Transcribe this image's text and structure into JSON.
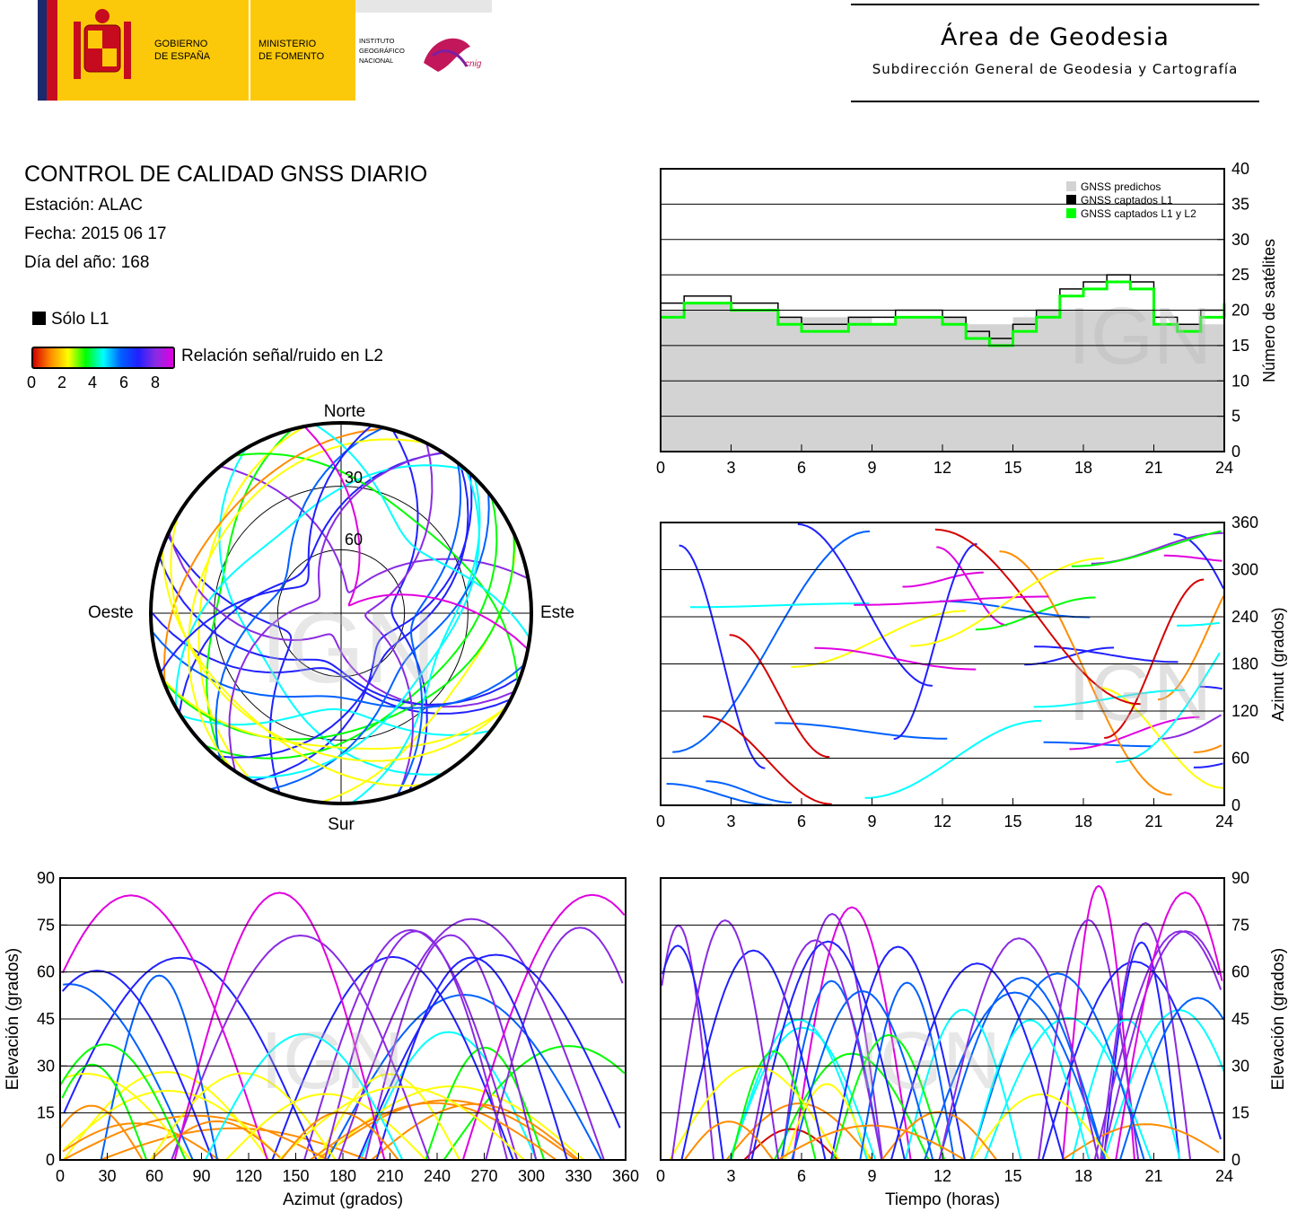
{
  "header": {
    "gov_text": [
      "GOBIERNO",
      "DE ESPAÑA"
    ],
    "ministry_text": [
      "MINISTERIO",
      "DE FOMENTO"
    ],
    "ign_text": [
      "INSTITUTO",
      "GEOGRÁFICO",
      "NACIONAL"
    ],
    "cnig_text": "cnig",
    "area_title": "Área de Geodesia",
    "area_subtitle": "Subdirección General de Geodesia y Cartografía"
  },
  "info": {
    "title": "CONTROL DE CALIDAD GNSS DIARIO",
    "station": "Estación: ALAC",
    "date": "Fecha: 2015 06 17",
    "doy": "Día del año: 168"
  },
  "legend": {
    "l1_only": "Sólo L1",
    "snr_label": "Relación señal/ruido en L2",
    "snr_ticks": [
      "0",
      "2",
      "4",
      "6",
      "8"
    ]
  },
  "watermark": "IGN",
  "colors": {
    "predicted": "#d3d3d3",
    "captured_l1": "#000000",
    "captured_l1_l2": "#00ff00",
    "snr_scale": [
      "#d40000",
      "#ff8c00",
      "#ffff00",
      "#00ff00",
      "#00ffff",
      "#0060ff",
      "#2020ff",
      "#8a2be2",
      "#e000e0"
    ]
  },
  "chart_data": [
    {
      "id": "satellite_count",
      "type": "area",
      "ylabel": "Número de satélites",
      "xlim": [
        0,
        24
      ],
      "ylim": [
        0,
        40
      ],
      "x_ticks": [
        "0",
        "3",
        "6",
        "9",
        "12",
        "15",
        "18",
        "21",
        "24"
      ],
      "y_ticks": [
        "0",
        "5",
        "10",
        "15",
        "20",
        "25",
        "30",
        "35",
        "40"
      ],
      "legend_position": "top-right",
      "grid": true,
      "series": [
        {
          "name": "GNSS predichos",
          "x": [
            0,
            1,
            2,
            3,
            4,
            5,
            6,
            7,
            8,
            9,
            10,
            11,
            12,
            13,
            14,
            15,
            16,
            17,
            18,
            19,
            20,
            21,
            22,
            23,
            24
          ],
          "values": [
            20,
            21,
            21,
            20,
            20,
            19,
            19,
            19,
            19,
            18,
            19,
            19,
            19,
            18,
            18,
            19,
            20,
            20,
            20,
            20,
            20,
            18,
            18,
            18,
            20
          ]
        },
        {
          "name": "GNSS captados L1",
          "x": [
            0,
            1,
            2,
            3,
            4,
            5,
            6,
            7,
            8,
            9,
            10,
            11,
            12,
            13,
            14,
            15,
            16,
            17,
            18,
            19,
            20,
            21,
            22,
            23,
            24
          ],
          "values": [
            21,
            22,
            22,
            21,
            21,
            19,
            18,
            18,
            19,
            19,
            20,
            20,
            19,
            17,
            16,
            18,
            20,
            23,
            24,
            25,
            24,
            19,
            18,
            20,
            22
          ]
        },
        {
          "name": "GNSS captados L1 y L2",
          "x": [
            0,
            1,
            2,
            3,
            4,
            5,
            6,
            7,
            8,
            9,
            10,
            11,
            12,
            13,
            14,
            15,
            16,
            17,
            18,
            19,
            20,
            21,
            22,
            23,
            24
          ],
          "values": [
            19,
            21,
            21,
            20,
            20,
            18,
            17,
            17,
            18,
            18,
            19,
            19,
            18,
            16,
            15,
            17,
            19,
            22,
            23,
            24,
            23,
            18,
            17,
            19,
            21
          ]
        }
      ]
    },
    {
      "id": "skyplot",
      "type": "scatter",
      "cardinals": [
        "Norte",
        "Este",
        "Sur",
        "Oeste"
      ],
      "elevation_rings": [
        "30",
        "60"
      ]
    },
    {
      "id": "azimuth_vs_time",
      "type": "scatter",
      "ylabel": "Azimut (grados)",
      "xlim": [
        0,
        24
      ],
      "ylim": [
        0,
        360
      ],
      "x_ticks": [
        "0",
        "3",
        "6",
        "9",
        "12",
        "15",
        "18",
        "21",
        "24"
      ],
      "y_ticks": [
        "0",
        "60",
        "120",
        "180",
        "240",
        "300",
        "360"
      ],
      "grid": true
    },
    {
      "id": "elevation_vs_azimuth",
      "type": "scatter",
      "xlabel": "Azimut (grados)",
      "ylabel": "Elevación (grados)",
      "xlim": [
        0,
        360
      ],
      "ylim": [
        0,
        90
      ],
      "x_ticks": [
        "0",
        "30",
        "60",
        "90",
        "120",
        "150",
        "180",
        "210",
        "240",
        "270",
        "300",
        "330",
        "360"
      ],
      "y_ticks": [
        "0",
        "15",
        "30",
        "45",
        "60",
        "75",
        "90"
      ],
      "grid": true
    },
    {
      "id": "elevation_vs_time",
      "type": "scatter",
      "xlabel": "Tiempo (horas)",
      "ylabel": "Elevación (grados)",
      "xlim": [
        0,
        24
      ],
      "ylim": [
        0,
        90
      ],
      "x_ticks": [
        "0",
        "3",
        "6",
        "9",
        "12",
        "15",
        "18",
        "21",
        "24"
      ],
      "y_ticks": [
        "0",
        "15",
        "30",
        "45",
        "60",
        "75",
        "90"
      ],
      "grid": true
    }
  ]
}
